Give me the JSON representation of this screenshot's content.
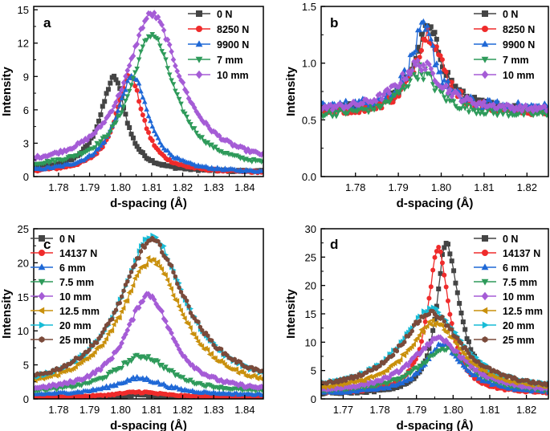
{
  "chart_data": [
    {
      "type": "line",
      "panel_label": "a",
      "xlabel": "d-spacing (Å)",
      "ylabel": "Intensity",
      "xlim": [
        1.772,
        1.846
      ],
      "ylim": [
        0,
        15.3
      ],
      "xticks": [
        1.78,
        1.79,
        1.8,
        1.81,
        1.82,
        1.83,
        1.84
      ],
      "xtick_labels": [
        "1.78",
        "1.79",
        "1.80",
        "1.81",
        "1.82",
        "1.83",
        "1.84"
      ],
      "yticks": [
        0,
        3,
        6,
        9,
        12,
        15
      ],
      "ytick_labels": [
        "0",
        "3",
        "6",
        "9",
        "12",
        "15"
      ],
      "legend_position": "top-right",
      "series": [
        {
          "name": "0 N",
          "color": "#444444",
          "marker": "square",
          "peak_center": 1.798,
          "peak_height": 8.9,
          "width_left": 0.0055,
          "width_right": 0.0045,
          "baseline": 0.4,
          "noise": 0.15
        },
        {
          "name": "8250 N",
          "color": "#ef2b2b",
          "marker": "circle",
          "peak_center": 1.803,
          "peak_height": 9.1,
          "width_left": 0.0055,
          "width_right": 0.005,
          "baseline": 0.3,
          "noise": 0.15
        },
        {
          "name": "9900 N",
          "color": "#1f68d6",
          "marker": "triangle-up",
          "peak_center": 1.804,
          "peak_height": 9.0,
          "width_left": 0.0065,
          "width_right": 0.006,
          "baseline": 0.3,
          "noise": 0.15
        },
        {
          "name": "7 mm",
          "color": "#2e9a5a",
          "marker": "triangle-down",
          "peak_center": 1.81,
          "peak_height": 12.8,
          "width_left": 0.0085,
          "width_right": 0.009,
          "baseline": 0.6,
          "noise": 0.2
        },
        {
          "name": "10 mm",
          "color": "#a55cd6",
          "marker": "diamond",
          "peak_center": 1.81,
          "peak_height": 14.6,
          "width_left": 0.01,
          "width_right": 0.011,
          "baseline": 0.8,
          "noise": 0.2
        }
      ]
    },
    {
      "type": "line",
      "panel_label": "b",
      "xlabel": "d-spacing (Å)",
      "ylabel": "Intensity",
      "xlim": [
        1.772,
        1.825
      ],
      "ylim": [
        0,
        1.5
      ],
      "xticks": [
        1.78,
        1.79,
        1.8,
        1.81,
        1.82
      ],
      "xtick_labels": [
        "1.78",
        "1.79",
        "1.80",
        "1.81",
        "1.82"
      ],
      "yticks": [
        0,
        0.5,
        1.0,
        1.5
      ],
      "ytick_labels": [
        "0.0",
        "0.5",
        "1.0",
        "1.5"
      ],
      "legend_position": "top-right",
      "series": [
        {
          "name": "0 N",
          "color": "#444444",
          "marker": "square",
          "peak_center": 1.797,
          "peak_height": 1.3,
          "width_left": 0.004,
          "width_right": 0.004,
          "baseline": 0.58,
          "noise": 0.05
        },
        {
          "name": "8250 N",
          "color": "#ef2b2b",
          "marker": "circle",
          "peak_center": 1.797,
          "peak_height": 1.27,
          "width_left": 0.004,
          "width_right": 0.004,
          "baseline": 0.56,
          "noise": 0.06
        },
        {
          "name": "9900 N",
          "color": "#1f68d6",
          "marker": "triangle-up",
          "peak_center": 1.796,
          "peak_height": 1.28,
          "width_left": 0.004,
          "width_right": 0.0035,
          "baseline": 0.6,
          "noise": 0.07
        },
        {
          "name": "7 mm",
          "color": "#2e9a5a",
          "marker": "triangle-down",
          "peak_center": 1.795,
          "peak_height": 0.93,
          "width_left": 0.005,
          "width_right": 0.005,
          "baseline": 0.54,
          "noise": 0.05
        },
        {
          "name": "10 mm",
          "color": "#a55cd6",
          "marker": "diamond",
          "peak_center": 1.795,
          "peak_height": 0.99,
          "width_left": 0.006,
          "width_right": 0.006,
          "baseline": 0.58,
          "noise": 0.04
        }
      ]
    },
    {
      "type": "line",
      "panel_label": "c",
      "xlabel": "d-spacing (Å)",
      "ylabel": "Intensity",
      "xlim": [
        1.772,
        1.846
      ],
      "ylim": [
        0,
        25
      ],
      "xticks": [
        1.78,
        1.79,
        1.8,
        1.81,
        1.82,
        1.83,
        1.84
      ],
      "xtick_labels": [
        "1.78",
        "1.79",
        "1.80",
        "1.81",
        "1.82",
        "1.83",
        "1.84"
      ],
      "yticks": [
        0,
        5,
        10,
        15,
        20,
        25
      ],
      "ytick_labels": [
        "0",
        "5",
        "10",
        "15",
        "20",
        "25"
      ],
      "legend_position": "top-left",
      "series": [
        {
          "name": "0 N",
          "color": "#444444",
          "marker": "square",
          "peak_center": 1.806,
          "peak_height": 0.6,
          "width_left": 0.008,
          "width_right": 0.008,
          "baseline": 0.2,
          "noise": 0.08
        },
        {
          "name": "14137 N",
          "color": "#ef2b2b",
          "marker": "circle",
          "peak_center": 1.806,
          "peak_height": 1.0,
          "width_left": 0.009,
          "width_right": 0.009,
          "baseline": 0.25,
          "noise": 0.1
        },
        {
          "name": "6 mm",
          "color": "#1f68d6",
          "marker": "triangle-up",
          "peak_center": 1.806,
          "peak_height": 3.0,
          "width_left": 0.01,
          "width_right": 0.01,
          "baseline": 0.5,
          "noise": 0.2
        },
        {
          "name": "7.5 mm",
          "color": "#2e9a5a",
          "marker": "triangle-down",
          "peak_center": 1.807,
          "peak_height": 6.3,
          "width_left": 0.011,
          "width_right": 0.011,
          "baseline": 0.8,
          "noise": 0.25
        },
        {
          "name": "10 mm",
          "color": "#a55cd6",
          "marker": "diamond",
          "peak_center": 1.809,
          "peak_height": 15.3,
          "width_left": 0.009,
          "width_right": 0.009,
          "baseline": 0.8,
          "noise": 0.3
        },
        {
          "name": "12.5 mm",
          "color": "#c9900c",
          "marker": "triangle-left",
          "peak_center": 1.81,
          "peak_height": 20.5,
          "width_left": 0.012,
          "width_right": 0.012,
          "baseline": 1.0,
          "noise": 0.35
        },
        {
          "name": "20 mm",
          "color": "#17bcd6",
          "marker": "triangle-right",
          "peak_center": 1.81,
          "peak_height": 24.0,
          "width_left": 0.012,
          "width_right": 0.013,
          "baseline": 1.2,
          "noise": 0.35
        },
        {
          "name": "25 mm",
          "color": "#7a4a3a",
          "marker": "hexagon",
          "peak_center": 1.81,
          "peak_height": 23.2,
          "width_left": 0.0125,
          "width_right": 0.0135,
          "baseline": 1.2,
          "noise": 0.35
        }
      ]
    },
    {
      "type": "line",
      "panel_label": "d",
      "xlabel": "d-spacing (Å)",
      "ylabel": "Intensity",
      "xlim": [
        1.764,
        1.826
      ],
      "ylim": [
        0,
        30
      ],
      "xticks": [
        1.77,
        1.78,
        1.79,
        1.8,
        1.81,
        1.82
      ],
      "xtick_labels": [
        "1.77",
        "1.78",
        "1.79",
        "1.80",
        "1.81",
        "1.82"
      ],
      "yticks": [
        0,
        5,
        10,
        15,
        20,
        25,
        30
      ],
      "ytick_labels": [
        "0",
        "5",
        "10",
        "15",
        "20",
        "25",
        "30"
      ],
      "legend_position": "top-right",
      "series": [
        {
          "name": "0 N",
          "color": "#444444",
          "marker": "square",
          "peak_center": 1.798,
          "peak_height": 27.5,
          "width_left": 0.003,
          "width_right": 0.0045,
          "baseline": 0.8,
          "noise": 0.3
        },
        {
          "name": "14137 N",
          "color": "#ef2b2b",
          "marker": "circle",
          "peak_center": 1.796,
          "peak_height": 26.5,
          "width_left": 0.0035,
          "width_right": 0.0035,
          "baseline": 0.8,
          "noise": 0.3
        },
        {
          "name": "6 mm",
          "color": "#1f68d6",
          "marker": "triangle-up",
          "peak_center": 1.797,
          "peak_height": 9.5,
          "width_left": 0.006,
          "width_right": 0.007,
          "baseline": 0.8,
          "noise": 0.3
        },
        {
          "name": "7.5 mm",
          "color": "#2e9a5a",
          "marker": "triangle-down",
          "peak_center": 1.798,
          "peak_height": 8.8,
          "width_left": 0.009,
          "width_right": 0.008,
          "baseline": 1.0,
          "noise": 0.3
        },
        {
          "name": "10 mm",
          "color": "#a55cd6",
          "marker": "diamond",
          "peak_center": 1.796,
          "peak_height": 10.5,
          "width_left": 0.009,
          "width_right": 0.009,
          "baseline": 1.0,
          "noise": 0.3
        },
        {
          "name": "12.5 mm",
          "color": "#c9900c",
          "marker": "triangle-left",
          "peak_center": 1.795,
          "peak_height": 13.5,
          "width_left": 0.009,
          "width_right": 0.009,
          "baseline": 1.2,
          "noise": 0.35
        },
        {
          "name": "20 mm",
          "color": "#17bcd6",
          "marker": "triangle-right",
          "peak_center": 1.794,
          "peak_height": 15.8,
          "width_left": 0.01,
          "width_right": 0.01,
          "baseline": 1.3,
          "noise": 0.35
        },
        {
          "name": "25 mm",
          "color": "#7a4a3a",
          "marker": "hexagon",
          "peak_center": 1.794,
          "peak_height": 15.2,
          "width_left": 0.01,
          "width_right": 0.01,
          "baseline": 1.3,
          "noise": 0.35
        }
      ]
    }
  ]
}
